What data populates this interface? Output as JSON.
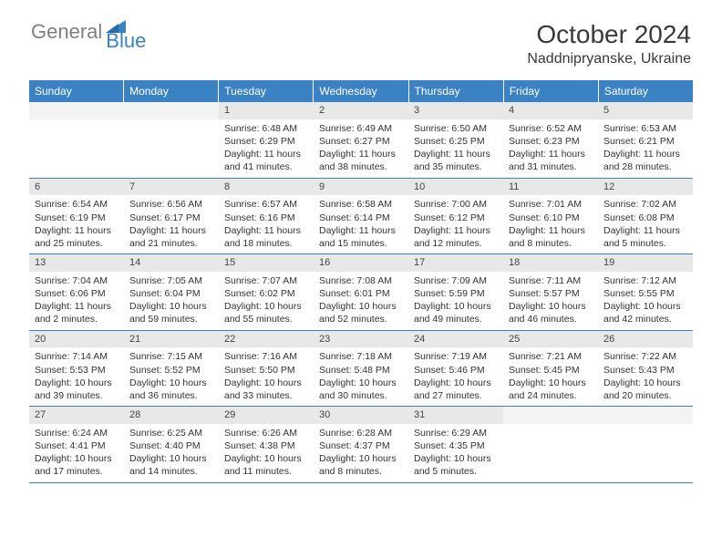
{
  "brand": {
    "part1": "General",
    "part2": "Blue"
  },
  "title": "October 2024",
  "location": "Naddnipryanske, Ukraine",
  "colors": {
    "header_blue": "#3b82c4",
    "daynum_bg": "#e8e8e8",
    "text": "#333333",
    "logo_gray": "#808080"
  },
  "dayHeaders": [
    "Sunday",
    "Monday",
    "Tuesday",
    "Wednesday",
    "Thursday",
    "Friday",
    "Saturday"
  ],
  "weeks": [
    [
      {
        "day": "",
        "sunrise": "",
        "sunset": "",
        "daylight": ""
      },
      {
        "day": "",
        "sunrise": "",
        "sunset": "",
        "daylight": ""
      },
      {
        "day": "1",
        "sunrise": "Sunrise: 6:48 AM",
        "sunset": "Sunset: 6:29 PM",
        "daylight": "Daylight: 11 hours and 41 minutes."
      },
      {
        "day": "2",
        "sunrise": "Sunrise: 6:49 AM",
        "sunset": "Sunset: 6:27 PM",
        "daylight": "Daylight: 11 hours and 38 minutes."
      },
      {
        "day": "3",
        "sunrise": "Sunrise: 6:50 AM",
        "sunset": "Sunset: 6:25 PM",
        "daylight": "Daylight: 11 hours and 35 minutes."
      },
      {
        "day": "4",
        "sunrise": "Sunrise: 6:52 AM",
        "sunset": "Sunset: 6:23 PM",
        "daylight": "Daylight: 11 hours and 31 minutes."
      },
      {
        "day": "5",
        "sunrise": "Sunrise: 6:53 AM",
        "sunset": "Sunset: 6:21 PM",
        "daylight": "Daylight: 11 hours and 28 minutes."
      }
    ],
    [
      {
        "day": "6",
        "sunrise": "Sunrise: 6:54 AM",
        "sunset": "Sunset: 6:19 PM",
        "daylight": "Daylight: 11 hours and 25 minutes."
      },
      {
        "day": "7",
        "sunrise": "Sunrise: 6:56 AM",
        "sunset": "Sunset: 6:17 PM",
        "daylight": "Daylight: 11 hours and 21 minutes."
      },
      {
        "day": "8",
        "sunrise": "Sunrise: 6:57 AM",
        "sunset": "Sunset: 6:16 PM",
        "daylight": "Daylight: 11 hours and 18 minutes."
      },
      {
        "day": "9",
        "sunrise": "Sunrise: 6:58 AM",
        "sunset": "Sunset: 6:14 PM",
        "daylight": "Daylight: 11 hours and 15 minutes."
      },
      {
        "day": "10",
        "sunrise": "Sunrise: 7:00 AM",
        "sunset": "Sunset: 6:12 PM",
        "daylight": "Daylight: 11 hours and 12 minutes."
      },
      {
        "day": "11",
        "sunrise": "Sunrise: 7:01 AM",
        "sunset": "Sunset: 6:10 PM",
        "daylight": "Daylight: 11 hours and 8 minutes."
      },
      {
        "day": "12",
        "sunrise": "Sunrise: 7:02 AM",
        "sunset": "Sunset: 6:08 PM",
        "daylight": "Daylight: 11 hours and 5 minutes."
      }
    ],
    [
      {
        "day": "13",
        "sunrise": "Sunrise: 7:04 AM",
        "sunset": "Sunset: 6:06 PM",
        "daylight": "Daylight: 11 hours and 2 minutes."
      },
      {
        "day": "14",
        "sunrise": "Sunrise: 7:05 AM",
        "sunset": "Sunset: 6:04 PM",
        "daylight": "Daylight: 10 hours and 59 minutes."
      },
      {
        "day": "15",
        "sunrise": "Sunrise: 7:07 AM",
        "sunset": "Sunset: 6:02 PM",
        "daylight": "Daylight: 10 hours and 55 minutes."
      },
      {
        "day": "16",
        "sunrise": "Sunrise: 7:08 AM",
        "sunset": "Sunset: 6:01 PM",
        "daylight": "Daylight: 10 hours and 52 minutes."
      },
      {
        "day": "17",
        "sunrise": "Sunrise: 7:09 AM",
        "sunset": "Sunset: 5:59 PM",
        "daylight": "Daylight: 10 hours and 49 minutes."
      },
      {
        "day": "18",
        "sunrise": "Sunrise: 7:11 AM",
        "sunset": "Sunset: 5:57 PM",
        "daylight": "Daylight: 10 hours and 46 minutes."
      },
      {
        "day": "19",
        "sunrise": "Sunrise: 7:12 AM",
        "sunset": "Sunset: 5:55 PM",
        "daylight": "Daylight: 10 hours and 42 minutes."
      }
    ],
    [
      {
        "day": "20",
        "sunrise": "Sunrise: 7:14 AM",
        "sunset": "Sunset: 5:53 PM",
        "daylight": "Daylight: 10 hours and 39 minutes."
      },
      {
        "day": "21",
        "sunrise": "Sunrise: 7:15 AM",
        "sunset": "Sunset: 5:52 PM",
        "daylight": "Daylight: 10 hours and 36 minutes."
      },
      {
        "day": "22",
        "sunrise": "Sunrise: 7:16 AM",
        "sunset": "Sunset: 5:50 PM",
        "daylight": "Daylight: 10 hours and 33 minutes."
      },
      {
        "day": "23",
        "sunrise": "Sunrise: 7:18 AM",
        "sunset": "Sunset: 5:48 PM",
        "daylight": "Daylight: 10 hours and 30 minutes."
      },
      {
        "day": "24",
        "sunrise": "Sunrise: 7:19 AM",
        "sunset": "Sunset: 5:46 PM",
        "daylight": "Daylight: 10 hours and 27 minutes."
      },
      {
        "day": "25",
        "sunrise": "Sunrise: 7:21 AM",
        "sunset": "Sunset: 5:45 PM",
        "daylight": "Daylight: 10 hours and 24 minutes."
      },
      {
        "day": "26",
        "sunrise": "Sunrise: 7:22 AM",
        "sunset": "Sunset: 5:43 PM",
        "daylight": "Daylight: 10 hours and 20 minutes."
      }
    ],
    [
      {
        "day": "27",
        "sunrise": "Sunrise: 6:24 AM",
        "sunset": "Sunset: 4:41 PM",
        "daylight": "Daylight: 10 hours and 17 minutes."
      },
      {
        "day": "28",
        "sunrise": "Sunrise: 6:25 AM",
        "sunset": "Sunset: 4:40 PM",
        "daylight": "Daylight: 10 hours and 14 minutes."
      },
      {
        "day": "29",
        "sunrise": "Sunrise: 6:26 AM",
        "sunset": "Sunset: 4:38 PM",
        "daylight": "Daylight: 10 hours and 11 minutes."
      },
      {
        "day": "30",
        "sunrise": "Sunrise: 6:28 AM",
        "sunset": "Sunset: 4:37 PM",
        "daylight": "Daylight: 10 hours and 8 minutes."
      },
      {
        "day": "31",
        "sunrise": "Sunrise: 6:29 AM",
        "sunset": "Sunset: 4:35 PM",
        "daylight": "Daylight: 10 hours and 5 minutes."
      },
      {
        "day": "",
        "sunrise": "",
        "sunset": "",
        "daylight": ""
      },
      {
        "day": "",
        "sunrise": "",
        "sunset": "",
        "daylight": ""
      }
    ]
  ]
}
